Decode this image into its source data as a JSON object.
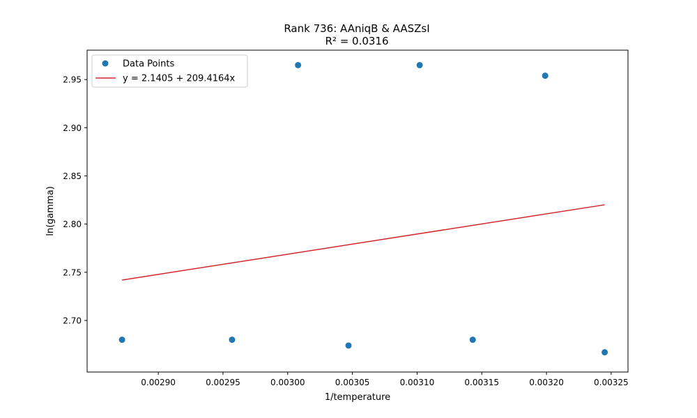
{
  "chart_data": {
    "type": "scatter",
    "title": "Rank 736: AAniqB & AASZsI",
    "subtitle": "R² = 0.0316",
    "xlabel": "1/temperature",
    "ylabel": "ln(gamma)",
    "xlim": [
      0.002845,
      0.003263
    ],
    "ylim": [
      2.6465,
      2.9805
    ],
    "xticks": [
      0.0029,
      0.00295,
      0.003,
      0.00305,
      0.0031,
      0.00315,
      0.0032,
      0.00325
    ],
    "xtick_labels": [
      "0.00290",
      "0.00295",
      "0.00300",
      "0.00305",
      "0.00310",
      "0.00315",
      "0.00320",
      "0.00325"
    ],
    "yticks": [
      2.7,
      2.75,
      2.8,
      2.85,
      2.9,
      2.95
    ],
    "ytick_labels": [
      "2.70",
      "2.75",
      "2.80",
      "2.85",
      "2.90",
      "2.95"
    ],
    "grid": false,
    "legend_position": "top-left",
    "series": [
      {
        "name": "Data Points",
        "kind": "scatter",
        "color": "#1f77b4",
        "points": [
          {
            "x": 0.002872,
            "y": 2.68
          },
          {
            "x": 0.002957,
            "y": 2.68
          },
          {
            "x": 0.003008,
            "y": 2.965
          },
          {
            "x": 0.003047,
            "y": 2.674
          },
          {
            "x": 0.003102,
            "y": 2.965
          },
          {
            "x": 0.003143,
            "y": 2.68
          },
          {
            "x": 0.003199,
            "y": 2.954
          },
          {
            "x": 0.003245,
            "y": 2.667
          }
        ]
      },
      {
        "name": "y = 2.1405 + 209.4164x",
        "kind": "line",
        "color": "#d62728",
        "intercept": 2.1405,
        "slope": 209.4164,
        "x_range": [
          0.002872,
          0.003245
        ]
      }
    ]
  }
}
